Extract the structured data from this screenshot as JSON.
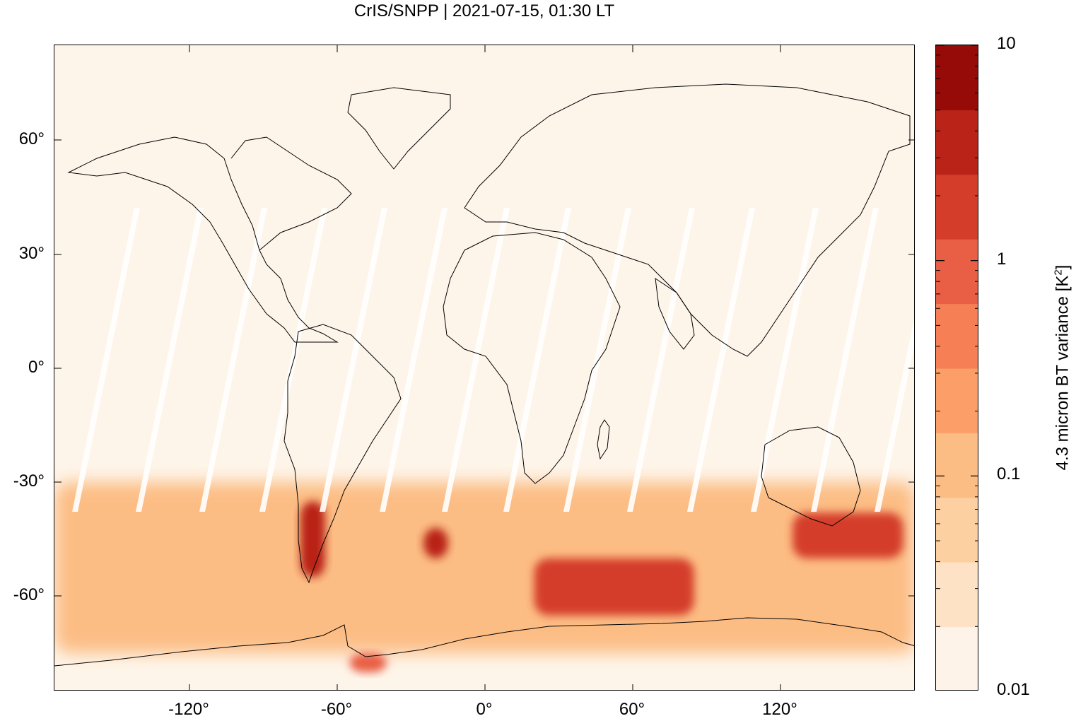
{
  "chart_data": {
    "type": "heatmap",
    "title": "CrIS/SNPP | 2021-07-15, 01:30 LT",
    "x_ticks": [
      "-120°",
      "-60°",
      "0°",
      "60°",
      "120°"
    ],
    "x_tick_values": [
      -120,
      -60,
      0,
      60,
      120
    ],
    "y_ticks": [
      "60°",
      "30°",
      "0°",
      "-30°",
      "-60°"
    ],
    "y_tick_values": [
      60,
      30,
      0,
      -30,
      -60
    ],
    "xlim": [
      -175,
      175
    ],
    "ylim": [
      -85,
      85
    ],
    "colorbar": {
      "label": "4.3 micron BT variance [K",
      "label_superscript": "2",
      "label_suffix": "]",
      "scale": "log",
      "range": [
        0.01,
        10
      ],
      "tick_labels": [
        "10",
        "1",
        "0.1",
        "0.01"
      ],
      "tick_values": [
        10,
        1,
        0.1,
        0.01
      ],
      "colors": [
        "#fdf3e8",
        "#fde2c6",
        "#fdd0a2",
        "#fcbd84",
        "#fc9e67",
        "#f67f55",
        "#e85f45",
        "#d43d2a",
        "#b92318",
        "#960a08"
      ]
    },
    "field_regions": [
      {
        "name": "background",
        "lon": [
          -175,
          175
        ],
        "lat": [
          -20,
          85
        ],
        "value": 0.012
      },
      {
        "name": "southern-hemisphere-band",
        "lon": [
          -175,
          175
        ],
        "lat": [
          -75,
          -30
        ],
        "value": 0.15
      },
      {
        "name": "patagonia-andes",
        "lon": [
          -75,
          -65
        ],
        "lat": [
          -55,
          -35
        ],
        "value": 5
      },
      {
        "name": "south-atlantic",
        "lon": [
          -25,
          -15
        ],
        "lat": [
          -50,
          -42
        ],
        "value": 3
      },
      {
        "name": "southern-indian-ocean",
        "lon": [
          20,
          85
        ],
        "lat": [
          -65,
          -50
        ],
        "value": 1.5
      },
      {
        "name": "south-of-australia",
        "lon": [
          125,
          170
        ],
        "lat": [
          -50,
          -38
        ],
        "value": 2
      },
      {
        "name": "antarctic-coast-weddell",
        "lon": [
          -55,
          -40
        ],
        "lat": [
          -80,
          -75
        ],
        "value": 1
      }
    ]
  }
}
